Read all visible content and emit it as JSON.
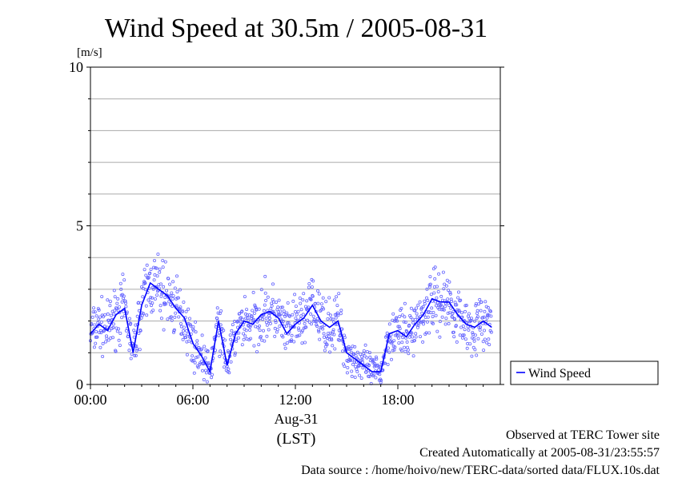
{
  "chart_data": {
    "type": "scatter",
    "title": "Wind Speed at 30.5m / 2005-08-31",
    "ylabel": "[m/s]",
    "ylim": [
      0,
      10
    ],
    "yticks": [
      "0",
      "5",
      "10"
    ],
    "xlim": [
      "00:00",
      "24:00"
    ],
    "xticks": [
      "00:00",
      "06:00",
      "12:00",
      "18:00"
    ],
    "date_label": "Aug-31",
    "time_zone_label": "(LST)",
    "grid": true,
    "legend_position": "right",
    "series": [
      {
        "name": "Wind Speed",
        "color": "#0000ff",
        "point_color": "#6666ff",
        "x": [
          "00:00",
          "00:30",
          "01:00",
          "01:30",
          "02:00",
          "02:30",
          "03:00",
          "03:30",
          "04:00",
          "04:30",
          "05:00",
          "05:30",
          "06:00",
          "06:30",
          "07:00",
          "07:30",
          "08:00",
          "08:30",
          "09:00",
          "09:30",
          "10:00",
          "10:30",
          "11:00",
          "11:30",
          "12:00",
          "12:30",
          "13:00",
          "13:30",
          "14:00",
          "14:30",
          "15:00",
          "15:30",
          "16:00",
          "16:30",
          "17:00",
          "17:30",
          "18:00",
          "18:30",
          "19:00",
          "19:30",
          "20:00",
          "20:30",
          "21:00",
          "21:30",
          "22:00",
          "22:30",
          "23:00",
          "23:30"
        ],
        "values": [
          1.6,
          1.9,
          1.7,
          2.2,
          2.4,
          1.0,
          2.5,
          3.2,
          3.0,
          2.8,
          2.4,
          2.1,
          1.3,
          0.9,
          0.4,
          2.0,
          0.6,
          1.6,
          2.0,
          1.9,
          2.2,
          2.3,
          2.1,
          1.6,
          1.9,
          2.1,
          2.5,
          2.0,
          1.8,
          2.0,
          1.0,
          0.8,
          0.6,
          0.4,
          0.4,
          1.6,
          1.7,
          1.5,
          1.9,
          2.2,
          2.7,
          2.6,
          2.6,
          2.2,
          1.9,
          1.8,
          2.0,
          1.8
        ]
      }
    ]
  },
  "footer": {
    "site": "Observed at TERC Tower site",
    "created": "Created Automatically at 2005-08-31/23:55:57",
    "source": "Data source : /home/hoivo/new/TERC-data/sorted  data/FLUX.10s.dat"
  }
}
